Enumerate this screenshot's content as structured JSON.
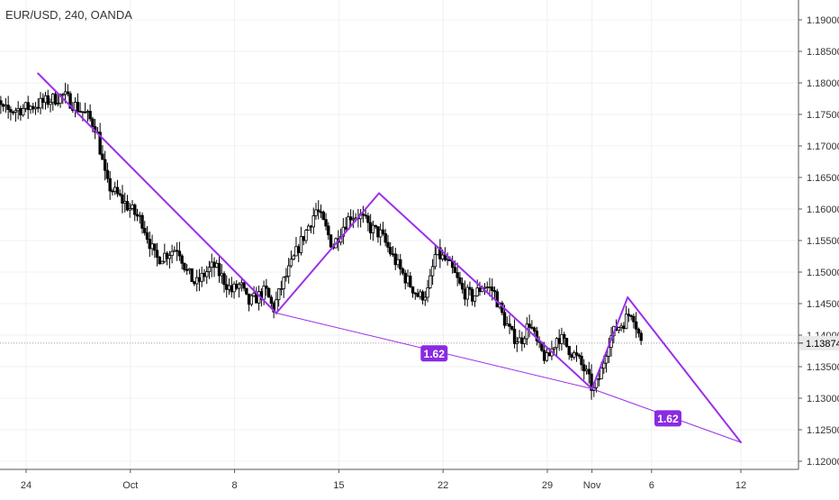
{
  "header": {
    "symbol_title": "EUR/USD, 240, OANDA"
  },
  "colors": {
    "background": "#ffffff",
    "grid": "#eef0f3",
    "candle": "#000000",
    "pattern": "#9b30e8",
    "badge_bg": "#8a2be2",
    "badge_text": "#ffffff",
    "axis_text": "#333333",
    "price_tag_bg": "#e9e9e9",
    "current_line": "#9e9e9e"
  },
  "chart_data": {
    "type": "candlestick",
    "title": "EUR/USD, 240, OANDA",
    "xlabel": "",
    "ylabel": "",
    "grid": true,
    "ylim": [
      1.118,
      1.1935
    ],
    "xlim": [
      -2.7,
      41.85
    ],
    "x_unit": "days since Sep 24",
    "y_ticks": [
      "1.12000",
      "1.12500",
      "1.13000",
      "1.13500",
      "1.14000",
      "1.14500",
      "1.15000",
      "1.15500",
      "1.16000",
      "1.16500",
      "1.17000",
      "1.17500",
      "1.18000",
      "1.18500",
      "1.19000"
    ],
    "y_tick_values": [
      1.12,
      1.125,
      1.13,
      1.135,
      1.14,
      1.145,
      1.15,
      1.155,
      1.16,
      1.165,
      1.17,
      1.175,
      1.18,
      1.185,
      1.19
    ],
    "x_ticks": [
      {
        "label": "24",
        "x": 0
      },
      {
        "label": "Oct",
        "x": 7
      },
      {
        "label": "8",
        "x": 14
      },
      {
        "label": "15",
        "x": 21
      },
      {
        "label": "22",
        "x": 28
      },
      {
        "label": "29",
        "x": 35
      },
      {
        "label": "Nov",
        "x": 38
      },
      {
        "label": "6",
        "x": 42
      },
      {
        "label": "12",
        "x": 48
      }
    ],
    "current_price": 1.13874,
    "current_price_label": "1.13874",
    "price_path": [
      [
        -2.7,
        1.1795
      ],
      [
        -1.5,
        1.1755
      ],
      [
        0,
        1.176
      ],
      [
        1.3,
        1.177
      ],
      [
        2.5,
        1.178
      ],
      [
        4,
        1.175
      ],
      [
        4.7,
        1.173
      ],
      [
        5.4,
        1.164
      ],
      [
        6.2,
        1.162
      ],
      [
        7,
        1.16
      ],
      [
        7.8,
        1.158
      ],
      [
        8.7,
        1.152
      ],
      [
        9.5,
        1.153
      ],
      [
        10.2,
        1.154
      ],
      [
        10.8,
        1.15
      ],
      [
        11.4,
        1.148
      ],
      [
        12.1,
        1.15
      ],
      [
        12.6,
        1.151
      ],
      [
        13.2,
        1.149
      ],
      [
        13.8,
        1.147
      ],
      [
        14.4,
        1.148
      ],
      [
        14.9,
        1.145
      ],
      [
        15.5,
        1.146
      ],
      [
        16.1,
        1.147
      ],
      [
        16.6,
        1.144
      ],
      [
        17.2,
        1.148
      ],
      [
        17.6,
        1.15
      ],
      [
        18.3,
        1.154
      ],
      [
        18.9,
        1.157
      ],
      [
        19.5,
        1.16
      ],
      [
        20.1,
        1.157
      ],
      [
        20.6,
        1.154
      ],
      [
        21.2,
        1.157
      ],
      [
        21.8,
        1.159
      ],
      [
        22.4,
        1.159
      ],
      [
        23.1,
        1.157
      ],
      [
        23.8,
        1.156
      ],
      [
        24.5,
        1.153
      ],
      [
        25.2,
        1.15
      ],
      [
        25.8,
        1.148
      ],
      [
        26.4,
        1.146
      ],
      [
        27,
        1.147
      ],
      [
        27.5,
        1.153
      ],
      [
        28.1,
        1.152
      ],
      [
        28.7,
        1.15
      ],
      [
        29.3,
        1.147
      ],
      [
        30,
        1.146
      ],
      [
        30.7,
        1.148
      ],
      [
        31.4,
        1.147
      ],
      [
        32,
        1.143
      ],
      [
        32.6,
        1.14
      ],
      [
        33.2,
        1.139
      ],
      [
        33.8,
        1.142
      ],
      [
        34.4,
        1.138
      ],
      [
        35,
        1.136
      ],
      [
        35.7,
        1.14
      ],
      [
        36.4,
        1.138
      ],
      [
        37.1,
        1.136
      ],
      [
        37.6,
        1.134
      ],
      [
        38.1,
        1.131
      ],
      [
        38.6,
        1.134
      ],
      [
        39.1,
        1.139
      ],
      [
        39.6,
        1.141
      ],
      [
        40.1,
        1.142
      ],
      [
        40.7,
        1.144
      ],
      [
        41.3,
        1.1387
      ]
    ],
    "pattern": {
      "legs": [
        [
          [
            0.8,
            1.1815
          ],
          [
            16.8,
            1.1435
          ]
        ],
        [
          [
            16.8,
            1.1435
          ],
          [
            23.7,
            1.1625
          ]
        ],
        [
          [
            23.7,
            1.1625
          ],
          [
            38.0,
            1.1315
          ]
        ],
        [
          [
            38.0,
            1.1315
          ],
          [
            40.4,
            1.146
          ]
        ],
        [
          [
            40.4,
            1.146
          ],
          [
            48.0,
            1.123
          ]
        ]
      ],
      "ratio_lines": [
        [
          [
            16.8,
            1.1435
          ],
          [
            38.0,
            1.1315
          ]
        ],
        [
          [
            38.0,
            1.1315
          ],
          [
            48.0,
            1.123
          ]
        ]
      ]
    },
    "annotations": [
      {
        "text": "1.62",
        "x": 27.4,
        "y": 1.1371
      },
      {
        "text": "1.62",
        "x": 43.1,
        "y": 1.1268
      }
    ]
  }
}
